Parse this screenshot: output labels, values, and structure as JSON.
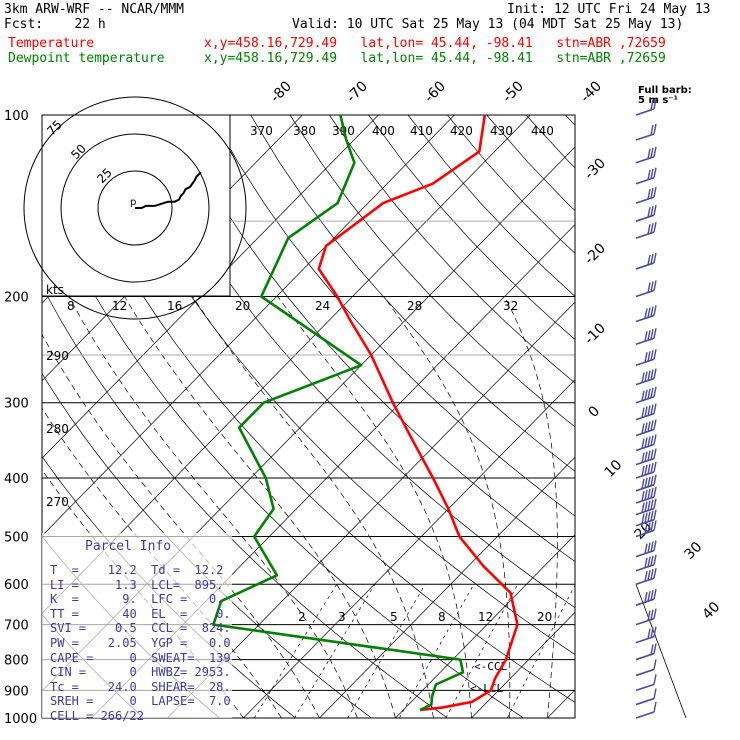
{
  "header": {
    "line1_left": "3km ARW-WRF -- NCAR/MMM",
    "line1_right": "Init: 12 UTC Fri 24 May 13",
    "line2_left": "Fcst:    22 h",
    "line2_right": "Valid: 10 UTC Sat 25 May 13 (04 MDT Sat 25 May 13)",
    "temp_label": "Temperature",
    "temp_info": "x,y=458.16,729.49   lat,lon= 45.44, -98.41   stn=ABR ,72659",
    "dew_label": "Dewpoint temperature",
    "dew_info": "x,y=458.16,729.49   lat,lon= 45.44, -98.41   stn=ABR ,72659"
  },
  "barb_legend": {
    "line1": "Full barb:",
    "line2": "5 m s⁻¹"
  },
  "parcel_info": {
    "title": "Parcel Info",
    "rows": [
      "T  =    12.2  Td =  12.2",
      "LI =     1.3  LCL=  895.",
      "K  =      9.  LFC =   0.",
      "TT =      40  EL  =    0.",
      "SVI =    0.5  CCL =  824.",
      "PW =    2.05  YGP =   0.0",
      "CAPE =     0  SWEAT=  139",
      "CIN =      0  HWBZ= 2953.",
      "Tc =    24.0  SHEAR=  28.",
      "SREH =     0  LAPSE=  7.0",
      "CELL = 266/22"
    ]
  },
  "labels": {
    "ccl": "<-CCL",
    "lcl": "<-LCL",
    "kts": "kts",
    "hodo_rings": [
      "25",
      "50",
      "75"
    ],
    "hodo_speeds": [
      "8",
      "12",
      "16",
      "20",
      "24",
      "28",
      "32"
    ],
    "isotherm_labels": [
      "-80",
      "-70",
      "-60",
      "-50",
      "-40",
      "-30",
      "-20",
      "-10",
      "0",
      "10",
      "20",
      "30",
      "40"
    ],
    "theta_labels": [
      "370",
      "380",
      "390",
      "400",
      "410",
      "420",
      "430",
      "440"
    ],
    "dry_labels": [
      "290",
      "280",
      "270"
    ],
    "mix_labels": [
      "2",
      "3",
      "5",
      "8",
      "12",
      "20"
    ]
  },
  "colors": {
    "temperature": "#ff0000",
    "dewpoint": "#008000",
    "barbs": "#4a4aa0",
    "grid": "#000000"
  },
  "chart_data": {
    "type": "skew-t sounding",
    "y_axis": "pressure (hPa)",
    "pressure_ticks": [
      100,
      200,
      300,
      400,
      500,
      600,
      700,
      800,
      900,
      1000
    ],
    "scale": "log pressure",
    "series": [
      {
        "name": "Temperature",
        "points": [
          [
            970,
            12.2
          ],
          [
            960,
            15
          ],
          [
            940,
            18
          ],
          [
            900,
            19
          ],
          [
            860,
            18
          ],
          [
            800,
            17
          ],
          [
            700,
            14
          ],
          [
            620,
            9
          ],
          [
            560,
            2
          ],
          [
            500,
            -5
          ],
          [
            450,
            -10
          ],
          [
            400,
            -16
          ],
          [
            350,
            -23
          ],
          [
            300,
            -31
          ],
          [
            250,
            -40
          ],
          [
            220,
            -47
          ],
          [
            200,
            -52
          ],
          [
            180,
            -58
          ],
          [
            165,
            -60
          ],
          [
            140,
            -58
          ],
          [
            130,
            -54
          ],
          [
            115,
            -52
          ],
          [
            100,
            -56
          ]
        ]
      },
      {
        "name": "Dewpoint temperature",
        "points": [
          [
            970,
            12.2
          ],
          [
            950,
            13
          ],
          [
            920,
            12
          ],
          [
            880,
            11
          ],
          [
            840,
            13
          ],
          [
            800,
            11
          ],
          [
            700,
            -26
          ],
          [
            640,
            -28
          ],
          [
            580,
            -24
          ],
          [
            500,
            -32
          ],
          [
            450,
            -33
          ],
          [
            400,
            -38
          ],
          [
            330,
            -48
          ],
          [
            300,
            -48
          ],
          [
            260,
            -40
          ],
          [
            200,
            -62
          ],
          [
            160,
            -66
          ],
          [
            140,
            -64
          ],
          [
            120,
            -67
          ],
          [
            110,
            -71
          ],
          [
            100,
            -75
          ]
        ]
      }
    ],
    "wind_profile": {
      "units": "m s-1",
      "barbs": [
        {
          "p": 1000,
          "speed": 5
        },
        {
          "p": 950,
          "speed": 5
        },
        {
          "p": 900,
          "speed": 5
        },
        {
          "p": 850,
          "speed": 5
        },
        {
          "p": 800,
          "speed": 10
        },
        {
          "p": 750,
          "speed": 15
        },
        {
          "p": 700,
          "speed": 15
        },
        {
          "p": 650,
          "speed": 20
        },
        {
          "p": 600,
          "speed": 20
        },
        {
          "p": 570,
          "speed": 20
        },
        {
          "p": 540,
          "speed": 20
        },
        {
          "p": 500,
          "speed": 20
        },
        {
          "p": 480,
          "speed": 25
        },
        {
          "p": 460,
          "speed": 25
        },
        {
          "p": 440,
          "speed": 25
        },
        {
          "p": 420,
          "speed": 25
        },
        {
          "p": 400,
          "speed": 25
        },
        {
          "p": 380,
          "speed": 25
        },
        {
          "p": 360,
          "speed": 25
        },
        {
          "p": 340,
          "speed": 25
        },
        {
          "p": 320,
          "speed": 25
        },
        {
          "p": 300,
          "speed": 25
        },
        {
          "p": 280,
          "speed": 25
        },
        {
          "p": 260,
          "speed": 20
        },
        {
          "p": 240,
          "speed": 20
        },
        {
          "p": 220,
          "speed": 20
        },
        {
          "p": 200,
          "speed": 15
        },
        {
          "p": 180,
          "speed": 15
        },
        {
          "p": 160,
          "speed": 15
        },
        {
          "p": 150,
          "speed": 15
        },
        {
          "p": 140,
          "speed": 15
        },
        {
          "p": 130,
          "speed": 15
        },
        {
          "p": 120,
          "speed": 15
        },
        {
          "p": 110,
          "speed": 10
        },
        {
          "p": 100,
          "speed": 10
        }
      ]
    },
    "hodograph_points": [
      [
        0,
        0
      ],
      [
        3,
        0
      ],
      [
        5,
        -1
      ],
      [
        9,
        -1
      ],
      [
        12,
        -2
      ],
      [
        15,
        -3
      ],
      [
        18,
        -3
      ],
      [
        20,
        -4
      ],
      [
        21,
        -6
      ],
      [
        22,
        -7
      ],
      [
        23,
        -9
      ],
      [
        25,
        -10
      ],
      [
        27,
        -13
      ],
      [
        28,
        -15
      ],
      [
        30,
        -17
      ]
    ]
  }
}
